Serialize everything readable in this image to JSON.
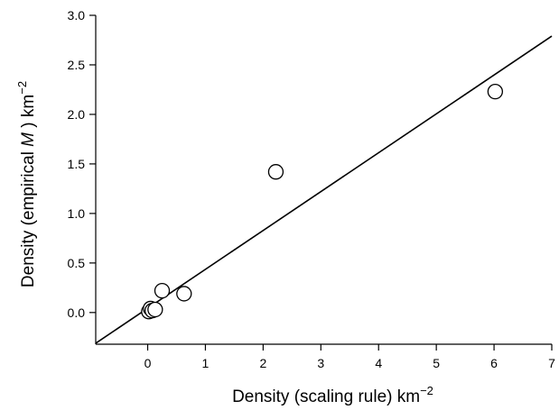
{
  "chart_data": {
    "type": "scatter",
    "title": "",
    "xlabel": "Density (scaling rule) km",
    "xlabel_sup": "−2",
    "ylabel_prefix": "Density (empirical ",
    "ylabel_italic": "M",
    "ylabel_suffix": " ) km",
    "ylabel_sup": "−2",
    "xlim": [
      -0.9,
      7
    ],
    "ylim": [
      -0.32,
      3.0
    ],
    "x_ticks": [
      0,
      1,
      2,
      3,
      4,
      5,
      6,
      7
    ],
    "x_tick_labels": [
      "0",
      "1",
      "2",
      "3",
      "4",
      "5",
      "6",
      "7"
    ],
    "y_ticks": [
      0.0,
      0.5,
      1.0,
      1.5,
      2.0,
      2.5,
      3.0
    ],
    "y_tick_labels": [
      "0.0",
      "0.5",
      "1.0",
      "1.5",
      "2.0",
      "2.5",
      "3.0"
    ],
    "grid": false,
    "series": [
      {
        "points": [
          {
            "x": 0.02,
            "y": 0.01
          },
          {
            "x": 0.05,
            "y": 0.04
          },
          {
            "x": 0.08,
            "y": 0.02
          },
          {
            "x": 0.13,
            "y": 0.03
          },
          {
            "x": 0.25,
            "y": 0.22
          },
          {
            "x": 0.63,
            "y": 0.19
          },
          {
            "x": 2.22,
            "y": 1.42
          },
          {
            "x": 6.02,
            "y": 2.23
          }
        ]
      }
    ],
    "fit_line": {
      "x": [
        -0.9,
        7
      ],
      "y": [
        -0.31,
        2.79
      ]
    }
  }
}
